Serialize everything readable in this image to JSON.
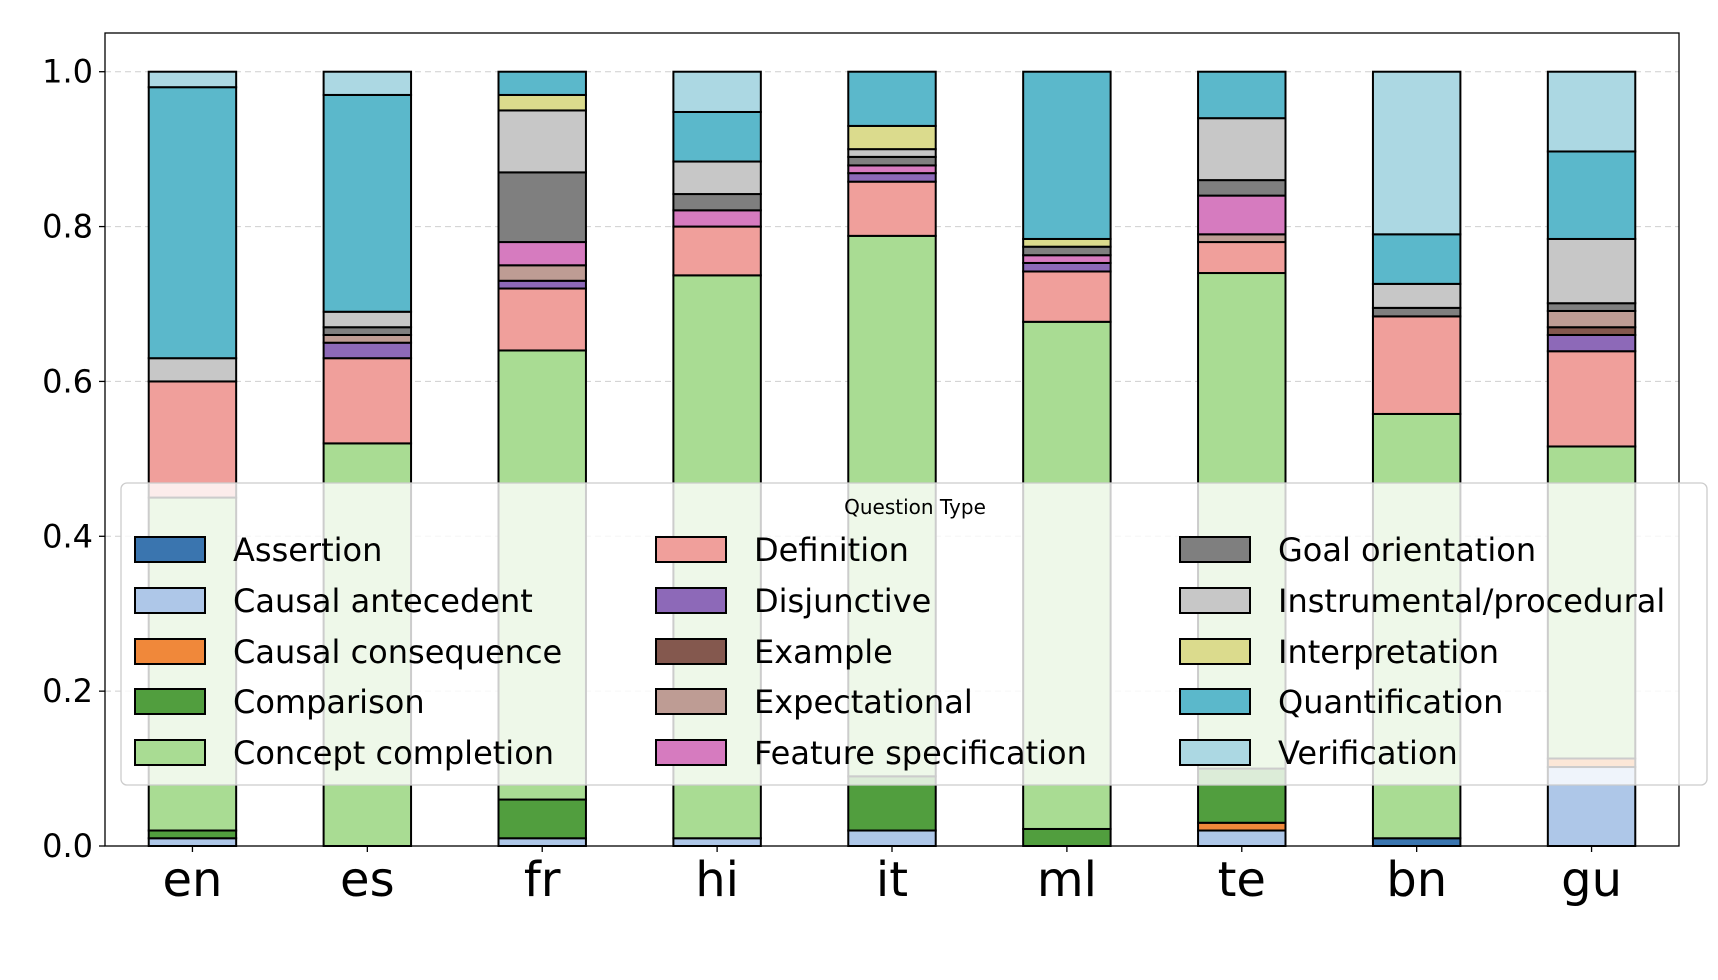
{
  "chart_data": {
    "type": "bar",
    "stacked": true,
    "categories": [
      "en",
      "es",
      "fr",
      "hi",
      "it",
      "ml",
      "te",
      "bn",
      "gu"
    ],
    "ylim": [
      0,
      1.05
    ],
    "yticks": [
      "0.0",
      "0.2",
      "0.4",
      "0.6",
      "0.8",
      "1.0"
    ],
    "grid": "y, dashed",
    "legend": {
      "title": "Question Type",
      "placement": "center, overlapping bars",
      "columns": 3
    },
    "series": [
      {
        "name": "Assertion",
        "color": "#3a75af",
        "values": [
          0,
          0,
          0,
          0,
          0,
          0,
          0,
          0.01,
          0
        ]
      },
      {
        "name": "Causal antecedent",
        "color": "#aec7e8",
        "values": [
          0.01,
          0,
          0.01,
          0.01,
          0.02,
          0,
          0.02,
          0,
          0.102
        ]
      },
      {
        "name": "Causal consequence",
        "color": "#f0883a",
        "values": [
          0,
          0,
          0,
          0,
          0,
          0,
          0.01,
          0,
          0.011
        ]
      },
      {
        "name": "Comparison",
        "color": "#519e3e",
        "values": [
          0.01,
          0,
          0.05,
          0,
          0.07,
          0.022,
          0.07,
          0,
          0
        ]
      },
      {
        "name": "Concept completion",
        "color": "#a9dc93",
        "values": [
          0.43,
          0.52,
          0.58,
          0.727,
          0.698,
          0.655,
          0.64,
          0.548,
          0.403
        ]
      },
      {
        "name": "Definition",
        "color": "#f09f9b",
        "values": [
          0.15,
          0.11,
          0.08,
          0.063,
          0.07,
          0.065,
          0.04,
          0.126,
          0.123
        ]
      },
      {
        "name": "Disjunctive",
        "color": "#8d69b8",
        "values": [
          0,
          0.02,
          0.01,
          0,
          0.011,
          0.011,
          0,
          0,
          0.021
        ]
      },
      {
        "name": "Example",
        "color": "#84584e",
        "values": [
          0,
          0,
          0,
          0,
          0,
          0,
          0,
          0,
          0.01
        ]
      },
      {
        "name": "Expectational",
        "color": "#be9c94",
        "values": [
          0,
          0.01,
          0.02,
          0,
          0,
          0,
          0.01,
          0,
          0.021
        ]
      },
      {
        "name": "Feature specification",
        "color": "#d67bbf",
        "values": [
          0,
          0,
          0.03,
          0.021,
          0.01,
          0.01,
          0.05,
          0,
          0
        ]
      },
      {
        "name": "Goal orientation",
        "color": "#7f7f7f",
        "values": [
          0,
          0.01,
          0.09,
          0.021,
          0.011,
          0.011,
          0.02,
          0.011,
          0.01
        ]
      },
      {
        "name": "Instrumental/procedural",
        "color": "#c7c7c7",
        "values": [
          0.03,
          0.02,
          0.08,
          0.042,
          0.01,
          0,
          0.08,
          0.031,
          0.083
        ]
      },
      {
        "name": "Interpretation",
        "color": "#dbdb8d",
        "values": [
          0,
          0,
          0.02,
          0,
          0.03,
          0.01,
          0,
          0,
          0
        ]
      },
      {
        "name": "Quantification",
        "color": "#5bb8cb",
        "values": [
          0.35,
          0.28,
          0.03,
          0.064,
          0.07,
          0.216,
          0.06,
          0.064,
          0.113
        ]
      },
      {
        "name": "Verification",
        "color": "#acd8e3",
        "values": [
          0.02,
          0.03,
          0,
          0.052,
          0,
          0,
          0,
          0.21,
          0.103
        ]
      }
    ]
  }
}
